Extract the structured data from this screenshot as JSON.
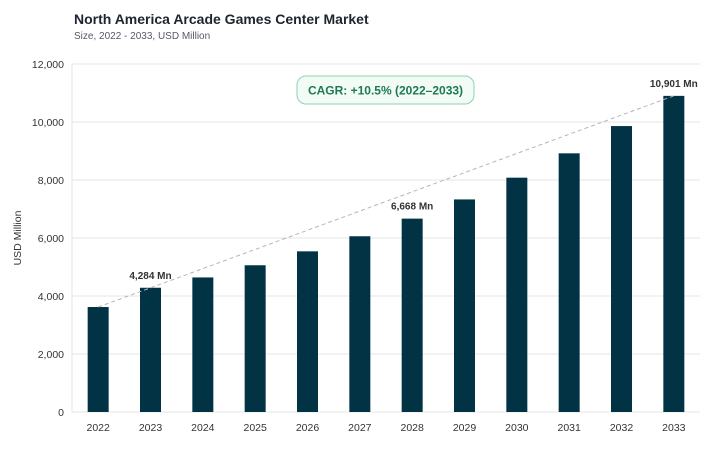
{
  "header": {
    "title": "North America Arcade Games Center Market",
    "subtitle": "Size, 2022 - 2033, USD Million"
  },
  "annotation": {
    "cagr_label": "CAGR: +10.5% (2022–2033)"
  },
  "colors": {
    "bar": "#023345",
    "grid": "#e6e6e6",
    "trend": "#b5b5b5",
    "cagr_text": "#1d7a52",
    "cagr_border": "#8fd1b0",
    "cagr_fill": "#f3fbf6"
  },
  "chart_data": {
    "type": "bar",
    "title": "North America Arcade Games Center Market",
    "subtitle": "Size, 2022 - 2033, USD Million",
    "xlabel": "",
    "ylabel": "USD Million",
    "ylim": [
      0,
      12000
    ],
    "yticks": [
      0,
      2000,
      4000,
      6000,
      8000,
      10000,
      12000
    ],
    "ytick_labels": [
      "0",
      "2,000",
      "4,000",
      "6,000",
      "8,000",
      "10,000",
      "12,000"
    ],
    "categories": [
      "2022",
      "2023",
      "2024",
      "2025",
      "2026",
      "2027",
      "2028",
      "2029",
      "2030",
      "2031",
      "2032",
      "2033"
    ],
    "values": [
      3620,
      4284,
      4640,
      5060,
      5540,
      6060,
      6668,
      7330,
      8080,
      8920,
      9860,
      10901
    ],
    "data_labels": [
      {
        "index": 1,
        "text": "4,284 Mn"
      },
      {
        "index": 6,
        "text": "6,668 Mn"
      },
      {
        "index": 11,
        "text": "10,901 Mn"
      }
    ],
    "trend_line": {
      "style": "dashed",
      "from_index": 0,
      "to_index": 11
    },
    "grid": true,
    "legend": "none"
  }
}
